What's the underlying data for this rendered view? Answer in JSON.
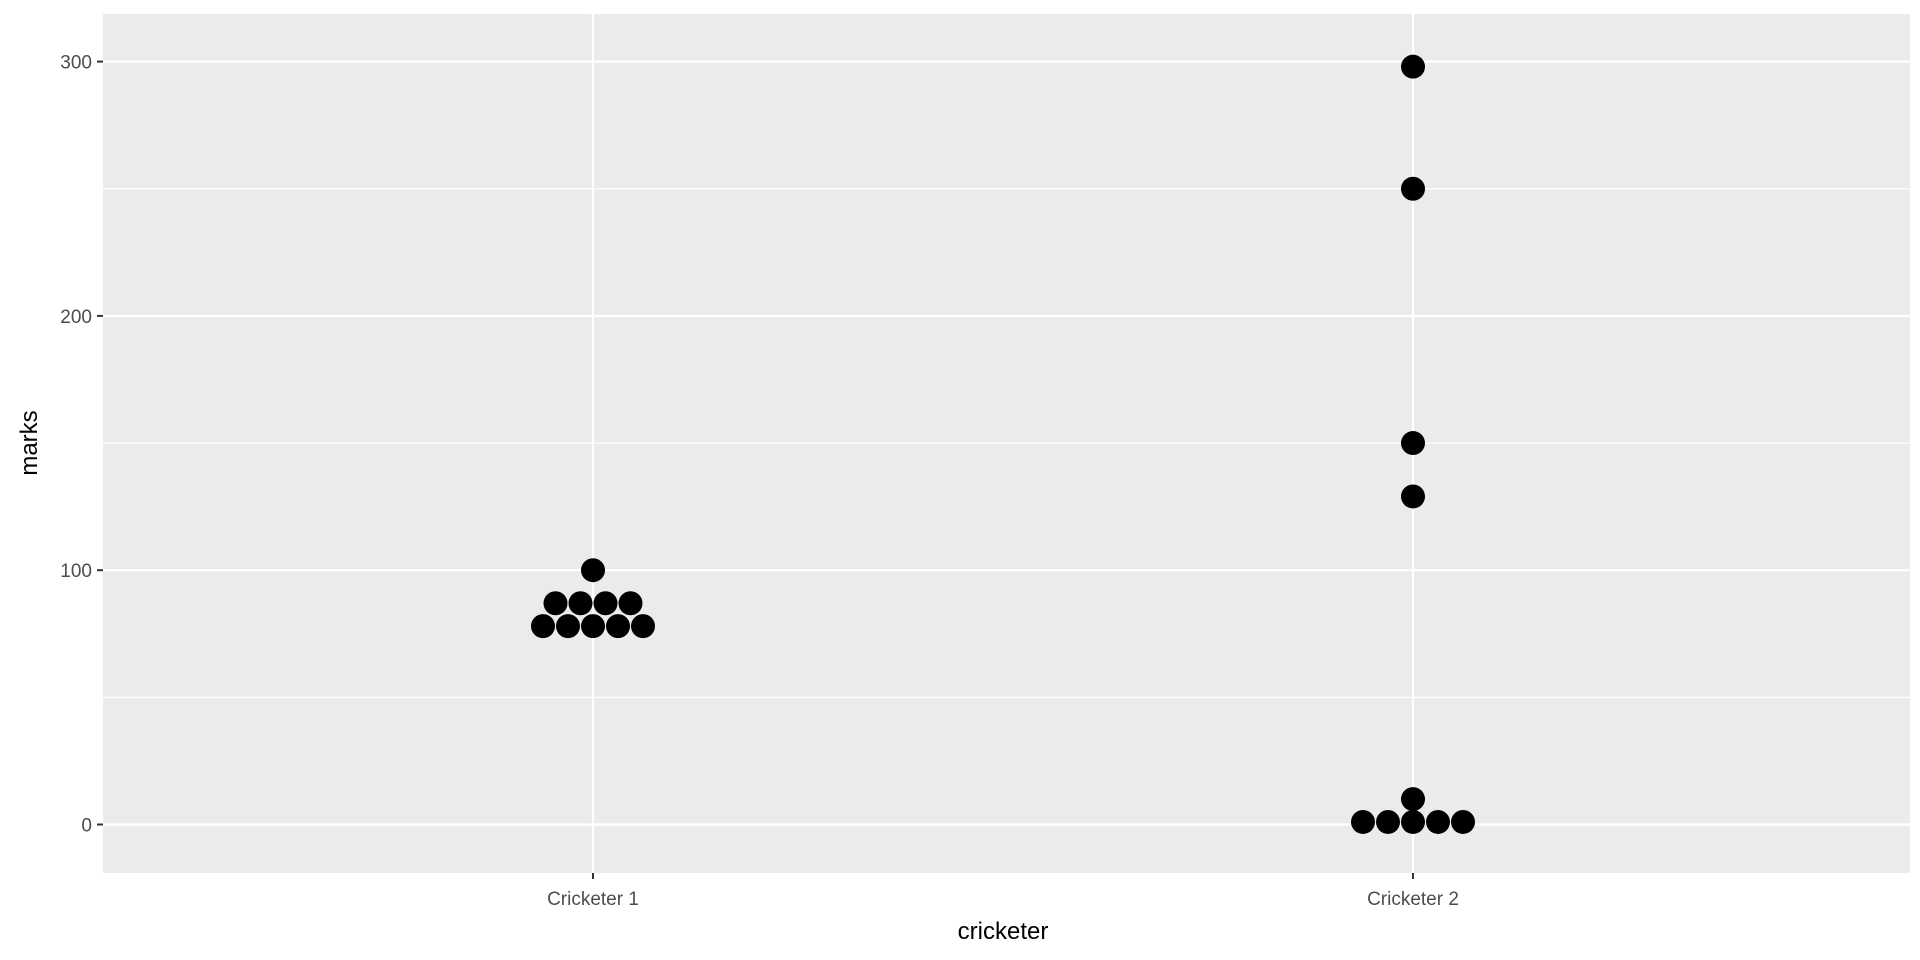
{
  "chart_data": {
    "type": "dotplot",
    "title": "",
    "xlabel": "cricketer",
    "ylabel": "marks",
    "categories": [
      "Cricketer 1",
      "Cricketer 2"
    ],
    "ylim": [
      -19,
      300
    ],
    "y_ticks": [
      0,
      100,
      200,
      300
    ],
    "grid": true,
    "panel_background": "#ebebeb",
    "grid_color": "#ffffff",
    "point_color": "#000000",
    "stacks": [
      {
        "category": "Cricketer 1",
        "groups": [
          {
            "y": 78,
            "count": 5
          },
          {
            "y": 87,
            "count": 4
          },
          {
            "y": 100,
            "count": 1
          }
        ]
      },
      {
        "category": "Cricketer 2",
        "groups": [
          {
            "y": 1,
            "count": 5
          },
          {
            "y": 10,
            "count": 1
          },
          {
            "y": 129,
            "count": 1
          },
          {
            "y": 150,
            "count": 1
          },
          {
            "y": 250,
            "count": 1
          },
          {
            "y": 298,
            "count": 1
          }
        ]
      }
    ]
  }
}
